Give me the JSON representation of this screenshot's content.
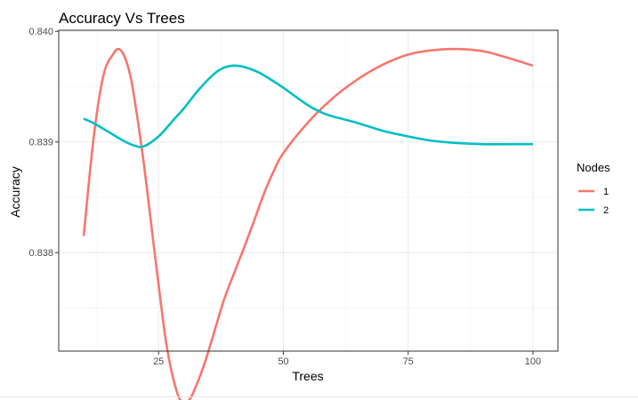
{
  "chart_data": {
    "type": "line",
    "title": "Accuracy Vs Trees",
    "xlabel": "Trees",
    "ylabel": "Accuracy",
    "xlim": [
      5,
      105
    ],
    "ylim": [
      0.83711,
      0.84001
    ],
    "xticks": [
      25,
      50,
      75,
      100
    ],
    "xtick_labels": [
      "25",
      "50",
      "75",
      "100"
    ],
    "yticks": [
      0.838,
      0.839,
      0.84
    ],
    "ytick_labels": [
      "0.838",
      "0.839",
      "0.840"
    ],
    "grid": true,
    "legend": {
      "title": "Nodes",
      "placement": "right"
    },
    "series": [
      {
        "name": "1",
        "color": "#F8766D",
        "x": [
          10,
          12,
          14,
          16,
          17,
          18,
          19,
          20,
          22,
          24,
          26,
          27,
          28,
          29,
          30,
          31,
          32,
          34,
          36,
          38,
          40,
          42,
          44,
          46,
          48,
          50,
          55,
          60,
          65,
          70,
          75,
          80,
          85,
          90,
          95,
          100
        ],
        "y": [
          0.83815,
          0.83904,
          0.83961,
          0.8398,
          0.83984,
          0.83979,
          0.83966,
          0.83944,
          0.83882,
          0.83808,
          0.83735,
          0.83706,
          0.83685,
          0.8367,
          0.83664,
          0.83666,
          0.83674,
          0.83697,
          0.83726,
          0.83756,
          0.8378,
          0.83803,
          0.83827,
          0.83852,
          0.83873,
          0.8389,
          0.83918,
          0.8394,
          0.83957,
          0.8397,
          0.83979,
          0.83983,
          0.83984,
          0.83982,
          0.83976,
          0.83969
        ]
      },
      {
        "name": "2",
        "color": "#00BFC4",
        "x": [
          10,
          12,
          15,
          18,
          20,
          22,
          25,
          28,
          30,
          33,
          36,
          38,
          40,
          42,
          45,
          48,
          50,
          55,
          58,
          60,
          65,
          70,
          75,
          80,
          85,
          90,
          95,
          100
        ],
        "y": [
          0.83921,
          0.83917,
          0.83909,
          0.83901,
          0.83897,
          0.83896,
          0.83905,
          0.8392,
          0.8393,
          0.83947,
          0.83961,
          0.83967,
          0.83969,
          0.83968,
          0.83963,
          0.83955,
          0.83949,
          0.83933,
          0.83926,
          0.83923,
          0.83917,
          0.8391,
          0.83905,
          0.83901,
          0.83899,
          0.83898,
          0.83898,
          0.83898
        ]
      }
    ]
  }
}
